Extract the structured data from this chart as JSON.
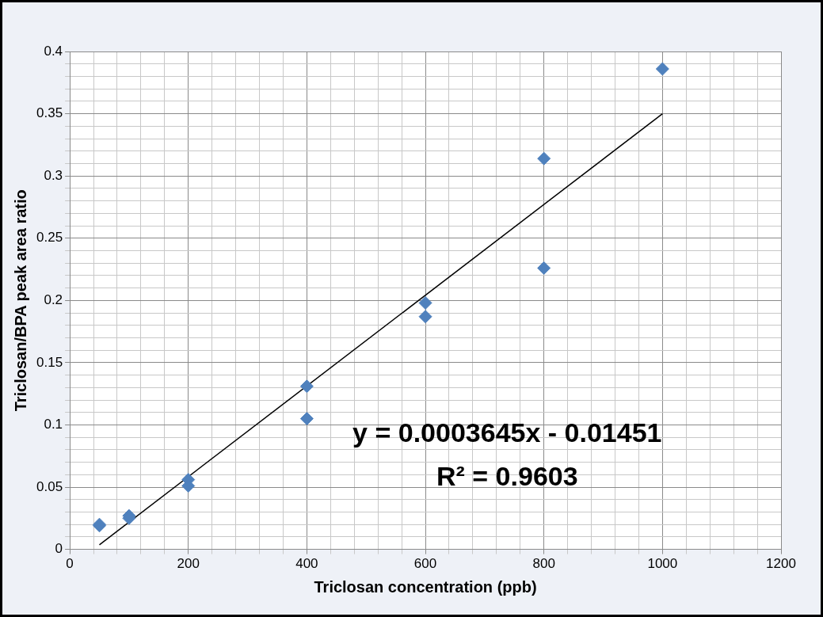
{
  "chart_data": {
    "type": "scatter",
    "xlabel": "Triclosan concentration (ppb)",
    "ylabel": "Triclosan/BPA peak area ratio",
    "series": [
      {
        "color": "#4f81bd",
        "marker": "diamond",
        "x": [
          50,
          50,
          100,
          100,
          200,
          200,
          400,
          400,
          600,
          600,
          800,
          800,
          1000
        ],
        "values": [
          0.019,
          0.02,
          0.027,
          0.025,
          0.056,
          0.051,
          0.131,
          0.105,
          0.198,
          0.187,
          0.314,
          0.226,
          0.386
        ]
      },
      {
        "type": "line",
        "color": "#000000",
        "marker": "none",
        "line_style": "solid",
        "x": [
          50,
          1000
        ],
        "values": [
          0.0037,
          0.35
        ]
      }
    ],
    "xlim": [
      0,
      1200
    ],
    "xticks": [
      0,
      {
        "value": 40,
        "label": null
      },
      {
        "value": 80,
        "label": null
      },
      {
        "value": 120,
        "label": null
      },
      {
        "value": 160,
        "label": null
      },
      200,
      {
        "value": 240,
        "label": null
      },
      {
        "value": 280,
        "label": null
      },
      {
        "value": 320,
        "label": null
      },
      {
        "value": 360,
        "label": null
      },
      400,
      {
        "value": 440,
        "label": null
      },
      {
        "value": 480,
        "label": null
      },
      {
        "value": 520,
        "label": null
      },
      {
        "value": 560,
        "label": null
      },
      600,
      {
        "value": 640,
        "label": null
      },
      {
        "value": 680,
        "label": null
      },
      {
        "value": 720,
        "label": null
      },
      {
        "value": 760,
        "label": null
      },
      800,
      {
        "value": 840,
        "label": null
      },
      {
        "value": 880,
        "label": null
      },
      {
        "value": 920,
        "label": null
      },
      {
        "value": 960,
        "label": null
      },
      1000,
      {
        "value": 1040,
        "label": null
      },
      {
        "value": 1080,
        "label": null
      },
      {
        "value": 1120,
        "label": null
      },
      {
        "value": 1160,
        "label": null
      },
      1200
    ],
    "ylim": [
      0,
      0.4
    ],
    "yticks": [
      0,
      {
        "value": 0.01,
        "label": null
      },
      {
        "value": 0.02,
        "label": null
      },
      {
        "value": 0.03,
        "label": null
      },
      {
        "value": 0.04,
        "label": null
      },
      0.05,
      {
        "value": 0.06,
        "label": null
      },
      {
        "value": 0.07,
        "label": null
      },
      {
        "value": 0.08,
        "label": null
      },
      {
        "value": 0.09,
        "label": null
      },
      0.1,
      {
        "value": 0.11,
        "label": null
      },
      {
        "value": 0.12,
        "label": null
      },
      {
        "value": 0.13,
        "label": null
      },
      {
        "value": 0.14,
        "label": null
      },
      0.15,
      {
        "value": 0.16,
        "label": null
      },
      {
        "value": 0.17,
        "label": null
      },
      {
        "value": 0.18,
        "label": null
      },
      {
        "value": 0.19,
        "label": null
      },
      0.2,
      {
        "value": 0.21,
        "label": null
      },
      {
        "value": 0.22,
        "label": null
      },
      {
        "value": 0.23,
        "label": null
      },
      {
        "value": 0.24,
        "label": null
      },
      0.25,
      {
        "value": 0.26,
        "label": null
      },
      {
        "value": 0.27,
        "label": null
      },
      {
        "value": 0.28,
        "label": null
      },
      {
        "value": 0.29,
        "label": null
      },
      0.3,
      {
        "value": 0.31,
        "label": null
      },
      {
        "value": 0.32,
        "label": null
      },
      {
        "value": 0.33,
        "label": null
      },
      {
        "value": 0.34,
        "label": null
      },
      0.35,
      {
        "value": 0.36,
        "label": null
      },
      {
        "value": 0.37,
        "label": null
      },
      {
        "value": 0.38,
        "label": null
      },
      {
        "value": 0.39,
        "label": null
      },
      0.4
    ],
    "grid": true,
    "legend": false,
    "annotations": [
      "y = 0.0003645x - 0.01451",
      "R² = 0.9603"
    ]
  }
}
